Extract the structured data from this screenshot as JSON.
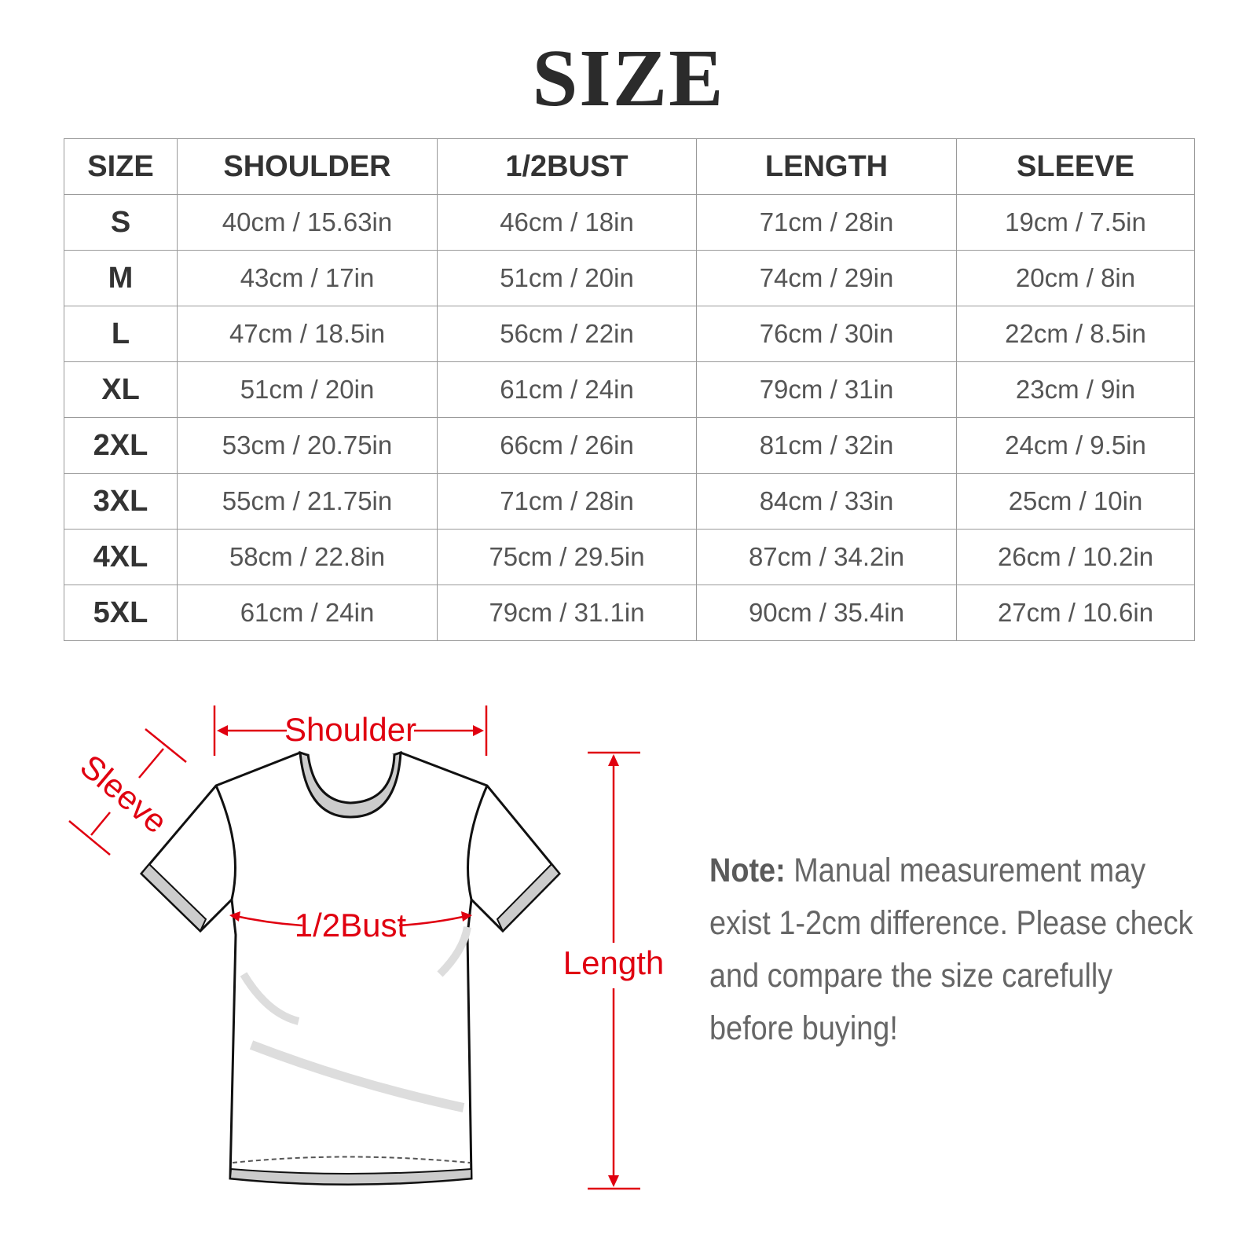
{
  "title": "SIZE",
  "table": {
    "headers": [
      "SIZE",
      "SHOULDER",
      "1/2BUST",
      "LENGTH",
      "SLEEVE"
    ],
    "rows": [
      [
        "S",
        "40cm / 15.63in",
        "46cm / 18in",
        "71cm / 28in",
        "19cm / 7.5in"
      ],
      [
        "M",
        "43cm / 17in",
        "51cm / 20in",
        "74cm / 29in",
        "20cm / 8in"
      ],
      [
        "L",
        "47cm / 18.5in",
        "56cm / 22in",
        "76cm / 30in",
        "22cm / 8.5in"
      ],
      [
        "XL",
        "51cm / 20in",
        "61cm / 24in",
        "79cm / 31in",
        "23cm / 9in"
      ],
      [
        "2XL",
        "53cm / 20.75in",
        "66cm / 26in",
        "81cm / 32in",
        "24cm / 9.5in"
      ],
      [
        "3XL",
        "55cm / 21.75in",
        "71cm / 28in",
        "84cm / 33in",
        "25cm / 10in"
      ],
      [
        "4XL",
        "58cm / 22.8in",
        "75cm / 29.5in",
        "87cm / 34.2in",
        "26cm / 10.2in"
      ],
      [
        "5XL",
        "61cm / 24in",
        "79cm / 31.1in",
        "90cm / 35.4in",
        "27cm / 10.6in"
      ]
    ]
  },
  "diagram": {
    "shoulder_label": "Shoulder",
    "sleeve_label": "Sleeve",
    "bust_label": "1/2Bust",
    "length_label": "Length",
    "accent_color": "#e00010"
  },
  "note": {
    "label": "Note:",
    "text": "Manual measurement may exist 1-2cm difference. Please check and compare the size carefully before buying!"
  }
}
